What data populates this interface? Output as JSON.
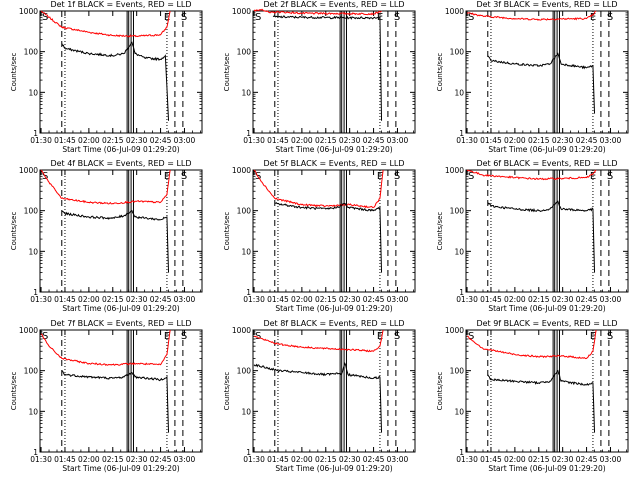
{
  "figure": {
    "xlabel": "Start Time (06-Jul-09 01:29:20)",
    "ylabel": "Counts/sec",
    "x_ticks": [
      "01:30",
      "01:45",
      "02:00",
      "02:15",
      "02:30",
      "02:45",
      "03:00"
    ],
    "y_ticks": [
      "1",
      "10",
      "100",
      "1000"
    ],
    "colors": {
      "events": "#000000",
      "lld": "#ff0000",
      "axes": "#000000",
      "background": "#ffffff"
    }
  },
  "chart_data": [
    {
      "type": "line",
      "title": "Det 1f BLACK = Events, RED = LLD",
      "ylim": [
        1,
        1000
      ],
      "log_y": true,
      "x_range": [
        "01:29:20",
        "03:11:00"
      ],
      "markers": {
        "S_left": "01:30",
        "E": "02:54",
        "S_right": "02:59"
      },
      "events_knots": [
        [
          "01:43",
          160
        ],
        [
          "01:45",
          120
        ],
        [
          "02:00",
          90
        ],
        [
          "02:15",
          80
        ],
        [
          "02:22",
          90
        ],
        [
          "02:27",
          170
        ],
        [
          "02:29",
          90
        ],
        [
          "02:35",
          70
        ],
        [
          "02:45",
          65
        ],
        [
          "02:48",
          80
        ],
        [
          "02:50",
          2
        ]
      ],
      "lld_knots": [
        [
          "01:30",
          1000
        ],
        [
          "01:35",
          700
        ],
        [
          "01:43",
          400
        ],
        [
          "02:00",
          300
        ],
        [
          "02:15",
          250
        ],
        [
          "02:30",
          240
        ],
        [
          "02:45",
          260
        ],
        [
          "02:49",
          400
        ],
        [
          "02:51",
          1000
        ]
      ]
    },
    {
      "type": "line",
      "title": "Det 2f BLACK = Events, RED = LLD",
      "ylim": [
        1,
        1000
      ],
      "log_y": true,
      "x_range": [
        "01:29:20",
        "03:11:00"
      ],
      "markers": {
        "S_left": "01:30",
        "E": "02:54",
        "S_right": "02:59"
      },
      "events_knots": [
        [
          "01:42",
          720
        ],
        [
          "02:00",
          700
        ],
        [
          "02:15",
          690
        ],
        [
          "02:30",
          680
        ],
        [
          "02:45",
          680
        ],
        [
          "02:49",
          700
        ],
        [
          "02:50",
          2
        ]
      ],
      "lld_knots": [
        [
          "01:30",
          1000
        ],
        [
          "01:35",
          1100
        ],
        [
          "01:40",
          900
        ],
        [
          "01:45",
          950
        ],
        [
          "02:00",
          880
        ],
        [
          "02:30",
          860
        ],
        [
          "02:45",
          850
        ],
        [
          "02:50",
          1000
        ]
      ]
    },
    {
      "type": "line",
      "title": "Det 3f BLACK = Events, RED = LLD",
      "ylim": [
        1,
        1000
      ],
      "log_y": true,
      "x_range": [
        "01:29:20",
        "03:11:00"
      ],
      "markers": {
        "S_left": "01:30",
        "E": "02:54",
        "S_right": "02:59"
      },
      "events_knots": [
        [
          "01:43",
          80
        ],
        [
          "01:45",
          60
        ],
        [
          "02:00",
          50
        ],
        [
          "02:15",
          45
        ],
        [
          "02:22",
          50
        ],
        [
          "02:27",
          90
        ],
        [
          "02:29",
          50
        ],
        [
          "02:45",
          40
        ],
        [
          "02:49",
          45
        ],
        [
          "02:50",
          3
        ]
      ],
      "lld_knots": [
        [
          "01:30",
          900
        ],
        [
          "01:40",
          750
        ],
        [
          "02:00",
          650
        ],
        [
          "02:15",
          620
        ],
        [
          "02:30",
          640
        ],
        [
          "02:45",
          650
        ],
        [
          "02:49",
          800
        ],
        [
          "02:51",
          1000
        ]
      ]
    },
    {
      "type": "line",
      "title": "Det 4f BLACK = Events, RED = LLD",
      "ylim": [
        1,
        1000
      ],
      "log_y": true,
      "x_range": [
        "01:29:20",
        "03:11:00"
      ],
      "markers": {
        "S_left": "01:30",
        "E": "02:54",
        "S_right": "02:59"
      },
      "events_knots": [
        [
          "01:43",
          100
        ],
        [
          "01:45",
          85
        ],
        [
          "02:00",
          70
        ],
        [
          "02:15",
          65
        ],
        [
          "02:22",
          75
        ],
        [
          "02:27",
          100
        ],
        [
          "02:29",
          70
        ],
        [
          "02:45",
          60
        ],
        [
          "02:49",
          70
        ],
        [
          "02:50",
          3
        ]
      ],
      "lld_knots": [
        [
          "01:30",
          1000
        ],
        [
          "01:35",
          500
        ],
        [
          "01:43",
          200
        ],
        [
          "02:00",
          160
        ],
        [
          "02:15",
          150
        ],
        [
          "02:30",
          170
        ],
        [
          "02:45",
          160
        ],
        [
          "02:49",
          250
        ],
        [
          "02:51",
          1000
        ]
      ]
    },
    {
      "type": "line",
      "title": "Det 5f BLACK = Events, RED = LLD",
      "ylim": [
        1,
        1000
      ],
      "log_y": true,
      "x_range": [
        "01:29:20",
        "03:11:00"
      ],
      "markers": {
        "S_left": "01:30",
        "E": "02:54",
        "S_right": "02:59"
      },
      "events_knots": [
        [
          "01:43",
          150
        ],
        [
          "02:00",
          120
        ],
        [
          "02:15",
          110
        ],
        [
          "02:22",
          120
        ],
        [
          "02:27",
          150
        ],
        [
          "02:29",
          120
        ],
        [
          "02:45",
          100
        ],
        [
          "02:49",
          120
        ],
        [
          "02:50",
          3
        ]
      ],
      "lld_knots": [
        [
          "01:30",
          1000
        ],
        [
          "01:35",
          500
        ],
        [
          "01:43",
          200
        ],
        [
          "02:00",
          140
        ],
        [
          "02:15",
          130
        ],
        [
          "02:30",
          140
        ],
        [
          "02:45",
          120
        ],
        [
          "02:49",
          200
        ],
        [
          "02:51",
          1000
        ]
      ]
    },
    {
      "type": "line",
      "title": "Det 6f BLACK = Events, RED = LLD",
      "ylim": [
        1,
        1000
      ],
      "log_y": true,
      "x_range": [
        "01:29:20",
        "03:11:00"
      ],
      "markers": {
        "S_left": "01:30",
        "E": "02:54",
        "S_right": "02:59"
      },
      "events_knots": [
        [
          "01:43",
          160
        ],
        [
          "01:45",
          130
        ],
        [
          "02:00",
          110
        ],
        [
          "02:15",
          100
        ],
        [
          "02:22",
          110
        ],
        [
          "02:27",
          170
        ],
        [
          "02:29",
          110
        ],
        [
          "02:45",
          100
        ],
        [
          "02:49",
          110
        ],
        [
          "02:50",
          3
        ]
      ],
      "lld_knots": [
        [
          "01:30",
          1000
        ],
        [
          "01:40",
          750
        ],
        [
          "02:00",
          650
        ],
        [
          "02:15",
          600
        ],
        [
          "02:30",
          620
        ],
        [
          "02:45",
          650
        ],
        [
          "02:49",
          800
        ],
        [
          "02:51",
          1000
        ]
      ]
    },
    {
      "type": "line",
      "title": "Det 7f BLACK = Events, RED = LLD",
      "ylim": [
        1,
        1000
      ],
      "log_y": true,
      "x_range": [
        "01:29:20",
        "03:11:00"
      ],
      "markers": {
        "S_left": "01:30",
        "E": "02:54",
        "S_right": "02:59"
      },
      "events_knots": [
        [
          "01:43",
          100
        ],
        [
          "01:45",
          80
        ],
        [
          "02:00",
          70
        ],
        [
          "02:15",
          65
        ],
        [
          "02:22",
          70
        ],
        [
          "02:27",
          90
        ],
        [
          "02:29",
          70
        ],
        [
          "02:45",
          60
        ],
        [
          "02:49",
          70
        ],
        [
          "02:50",
          3
        ]
      ],
      "lld_knots": [
        [
          "01:30",
          800
        ],
        [
          "01:35",
          400
        ],
        [
          "01:43",
          200
        ],
        [
          "02:00",
          150
        ],
        [
          "02:15",
          140
        ],
        [
          "02:30",
          150
        ],
        [
          "02:45",
          140
        ],
        [
          "02:49",
          250
        ],
        [
          "02:51",
          1000
        ]
      ]
    },
    {
      "type": "line",
      "title": "Det 8f BLACK = Events, RED = LLD",
      "ylim": [
        1,
        1000
      ],
      "log_y": true,
      "x_range": [
        "01:29:20",
        "03:11:00"
      ],
      "markers": {
        "S_left": "01:30",
        "E": "02:54",
        "S_right": "02:59"
      },
      "events_knots": [
        [
          "01:30",
          140
        ],
        [
          "01:45",
          100
        ],
        [
          "02:00",
          90
        ],
        [
          "02:15",
          80
        ],
        [
          "02:25",
          85
        ],
        [
          "02:27",
          150
        ],
        [
          "02:29",
          80
        ],
        [
          "02:45",
          65
        ],
        [
          "02:49",
          70
        ],
        [
          "02:50",
          3
        ]
      ],
      "lld_knots": [
        [
          "01:30",
          700
        ],
        [
          "01:45",
          450
        ],
        [
          "02:00",
          380
        ],
        [
          "02:15",
          350
        ],
        [
          "02:30",
          330
        ],
        [
          "02:45",
          300
        ],
        [
          "02:49",
          400
        ],
        [
          "02:51",
          1000
        ]
      ]
    },
    {
      "type": "line",
      "title": "Det 9f BLACK = Events, RED = LLD",
      "ylim": [
        1,
        1000
      ],
      "log_y": true,
      "x_range": [
        "01:29:20",
        "03:11:00"
      ],
      "markers": {
        "S_left": "01:30",
        "E": "02:54",
        "S_right": "02:59"
      },
      "events_knots": [
        [
          "01:43",
          80
        ],
        [
          "01:45",
          60
        ],
        [
          "02:00",
          55
        ],
        [
          "02:15",
          50
        ],
        [
          "02:22",
          55
        ],
        [
          "02:27",
          100
        ],
        [
          "02:29",
          55
        ],
        [
          "02:45",
          45
        ],
        [
          "02:49",
          50
        ],
        [
          "02:50",
          3
        ]
      ],
      "lld_knots": [
        [
          "01:30",
          700
        ],
        [
          "01:40",
          350
        ],
        [
          "02:00",
          250
        ],
        [
          "02:15",
          220
        ],
        [
          "02:30",
          230
        ],
        [
          "02:45",
          200
        ],
        [
          "02:49",
          300
        ],
        [
          "02:51",
          1000
        ]
      ]
    }
  ]
}
